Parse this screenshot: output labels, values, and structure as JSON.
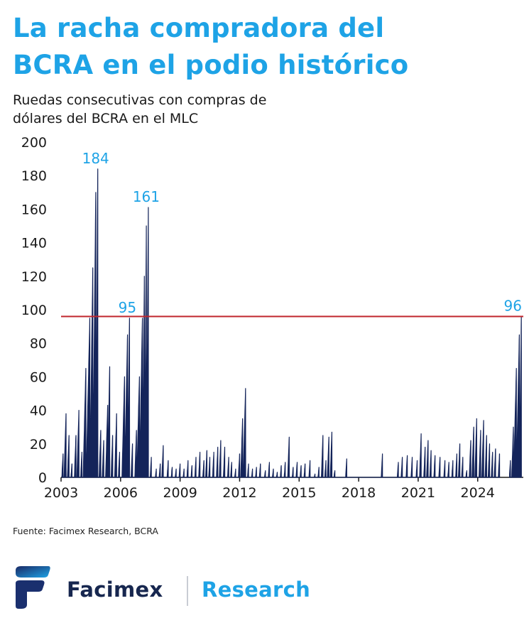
{
  "header": {
    "title_line1": "La racha compradora del",
    "title_line2": "BCRA en el podio histórico",
    "subtitle_line1": "Ruedas consecutivas con compras de",
    "subtitle_line2": "dólares del BCRA en el MLC"
  },
  "source": "Fuente: Facimex Research, BCRA",
  "brand": {
    "name": "Facimex",
    "unit": "Research"
  },
  "colors": {
    "series": "#14245a",
    "accent": "#1ea3e6",
    "reference": "#c0262d"
  },
  "chart_data": {
    "type": "area",
    "title": "",
    "xlabel": "",
    "ylabel": "",
    "ylim": [
      0,
      200
    ],
    "yticks": [
      0,
      20,
      40,
      60,
      80,
      100,
      120,
      140,
      160,
      180,
      200
    ],
    "xlim": [
      2003.0,
      2026.3
    ],
    "xticks": [
      2003,
      2006,
      2009,
      2012,
      2015,
      2018,
      2021,
      2024
    ],
    "grid": false,
    "legend": "none",
    "reference_line": {
      "y": 96
    },
    "series": [
      {
        "name": "",
        "peaks": [
          [
            2003.1,
            14
          ],
          [
            2003.25,
            38
          ],
          [
            2003.4,
            25
          ],
          [
            2003.55,
            8
          ],
          [
            2003.75,
            25
          ],
          [
            2003.9,
            40
          ],
          [
            2004.05,
            15
          ],
          [
            2004.25,
            65
          ],
          [
            2004.45,
            95
          ],
          [
            2004.6,
            125
          ],
          [
            2004.75,
            170
          ],
          [
            2004.85,
            184
          ],
          [
            2005.0,
            28
          ],
          [
            2005.15,
            22
          ],
          [
            2005.35,
            43
          ],
          [
            2005.45,
            66
          ],
          [
            2005.6,
            25
          ],
          [
            2005.8,
            38
          ],
          [
            2005.95,
            15
          ],
          [
            2006.2,
            60
          ],
          [
            2006.35,
            85
          ],
          [
            2006.45,
            95
          ],
          [
            2006.6,
            20
          ],
          [
            2006.8,
            28
          ],
          [
            2006.95,
            60
          ],
          [
            2007.1,
            95
          ],
          [
            2007.2,
            120
          ],
          [
            2007.3,
            150
          ],
          [
            2007.4,
            161
          ],
          [
            2007.55,
            12
          ],
          [
            2007.8,
            5
          ],
          [
            2008.0,
            8
          ],
          [
            2008.15,
            19
          ],
          [
            2008.4,
            10
          ],
          [
            2008.6,
            6
          ],
          [
            2008.8,
            5
          ],
          [
            2009.0,
            8
          ],
          [
            2009.2,
            5
          ],
          [
            2009.4,
            10
          ],
          [
            2009.6,
            7
          ],
          [
            2009.8,
            12
          ],
          [
            2010.0,
            15
          ],
          [
            2010.2,
            10
          ],
          [
            2010.35,
            16
          ],
          [
            2010.5,
            12
          ],
          [
            2010.7,
            15
          ],
          [
            2010.9,
            18
          ],
          [
            2011.05,
            22
          ],
          [
            2011.25,
            18
          ],
          [
            2011.45,
            12
          ],
          [
            2011.6,
            9
          ],
          [
            2011.8,
            5
          ],
          [
            2012.0,
            14
          ],
          [
            2012.15,
            35
          ],
          [
            2012.3,
            53
          ],
          [
            2012.45,
            8
          ],
          [
            2012.65,
            5
          ],
          [
            2012.85,
            6
          ],
          [
            2013.05,
            8
          ],
          [
            2013.3,
            4
          ],
          [
            2013.5,
            9
          ],
          [
            2013.7,
            5
          ],
          [
            2013.9,
            3
          ],
          [
            2014.1,
            7
          ],
          [
            2014.3,
            9
          ],
          [
            2014.5,
            24
          ],
          [
            2014.7,
            6
          ],
          [
            2014.9,
            9
          ],
          [
            2015.1,
            7
          ],
          [
            2015.3,
            8
          ],
          [
            2015.55,
            10
          ],
          [
            2015.8,
            2
          ],
          [
            2016.0,
            6
          ],
          [
            2016.2,
            25
          ],
          [
            2016.35,
            10
          ],
          [
            2016.5,
            24
          ],
          [
            2016.65,
            27
          ],
          [
            2016.8,
            4
          ],
          [
            2017.4,
            11
          ],
          [
            2019.2,
            14
          ],
          [
            2020.0,
            9
          ],
          [
            2020.2,
            12
          ],
          [
            2020.45,
            13
          ],
          [
            2020.7,
            12
          ],
          [
            2020.95,
            10
          ],
          [
            2021.15,
            26
          ],
          [
            2021.35,
            18
          ],
          [
            2021.5,
            22
          ],
          [
            2021.65,
            16
          ],
          [
            2021.85,
            13
          ],
          [
            2022.1,
            12
          ],
          [
            2022.35,
            10
          ],
          [
            2022.55,
            9
          ],
          [
            2022.75,
            10
          ],
          [
            2022.95,
            14
          ],
          [
            2023.1,
            20
          ],
          [
            2023.25,
            12
          ],
          [
            2023.45,
            4
          ],
          [
            2023.65,
            22
          ],
          [
            2023.8,
            30
          ],
          [
            2023.95,
            35
          ],
          [
            2024.15,
            28
          ],
          [
            2024.3,
            34
          ],
          [
            2024.45,
            25
          ],
          [
            2024.6,
            20
          ],
          [
            2024.75,
            15
          ],
          [
            2024.9,
            17
          ],
          [
            2025.1,
            14
          ],
          [
            2025.65,
            10
          ],
          [
            2025.8,
            30
          ],
          [
            2025.95,
            65
          ],
          [
            2026.1,
            85
          ],
          [
            2026.2,
            96
          ]
        ],
        "gaps": [
          [
            2017.5,
            2019.1
          ],
          [
            2019.3,
            2019.9
          ],
          [
            2025.3,
            2025.6
          ]
        ]
      }
    ],
    "annotations": [
      {
        "label": "184",
        "x": 2004.85,
        "y": 184
      },
      {
        "label": "95",
        "x": 2006.45,
        "y": 95
      },
      {
        "label": "161",
        "x": 2007.4,
        "y": 161
      },
      {
        "label": "96",
        "x": 2026.2,
        "y": 96
      }
    ]
  }
}
